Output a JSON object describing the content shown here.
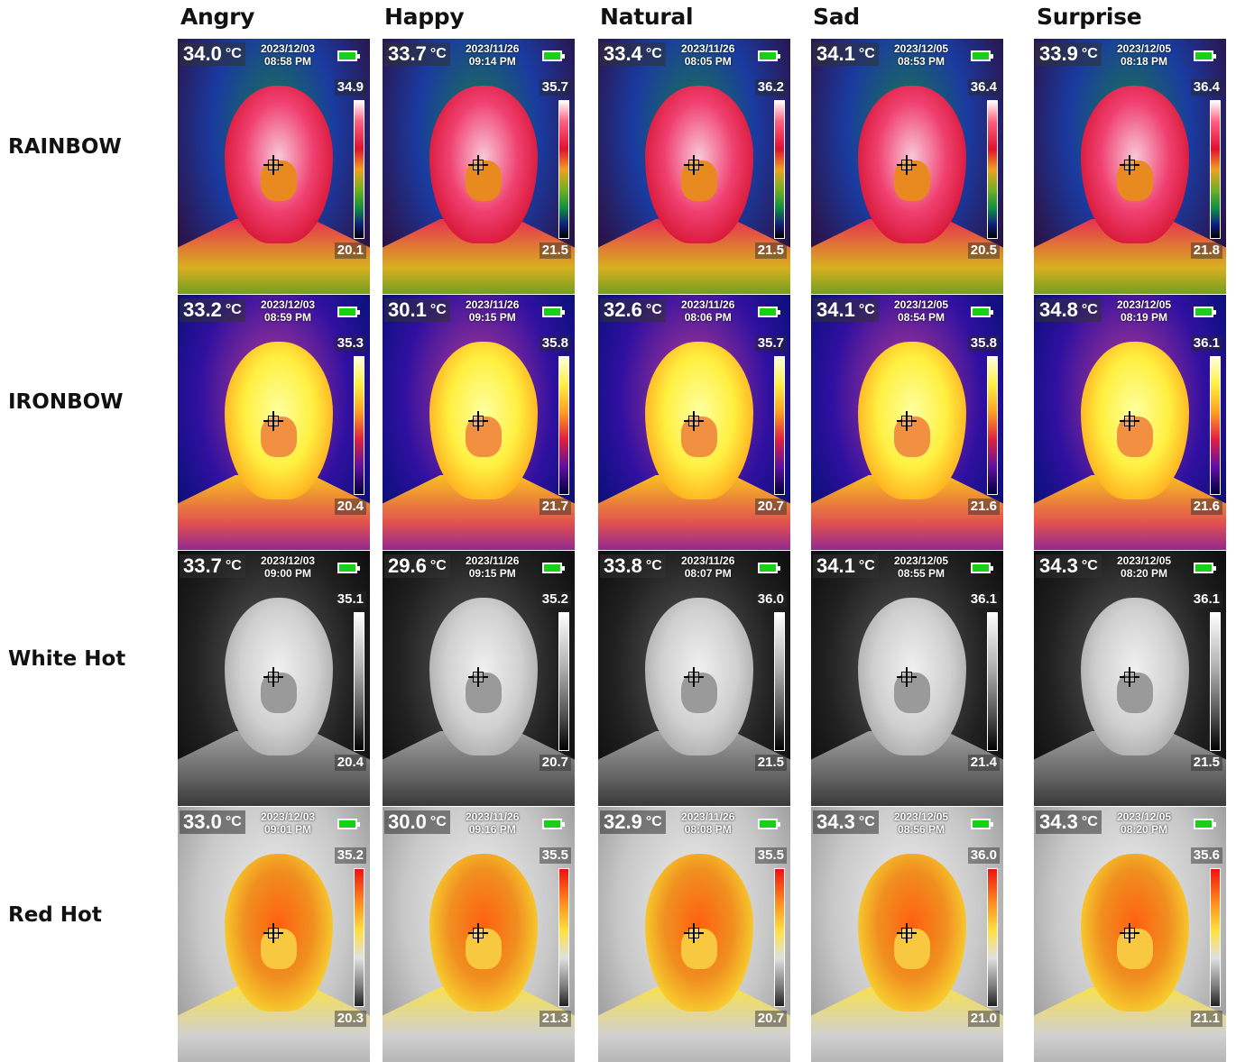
{
  "columns": [
    "Angry",
    "Happy",
    "Natural",
    "Sad",
    "Surprise"
  ],
  "rows": [
    {
      "label": "RAINBOW",
      "palette": "rainbow",
      "cells": [
        {
          "temp": "34.0",
          "unit": "°C",
          "date": "2023/12/03",
          "time": "08:58 PM",
          "max": "34.9",
          "min": "20.1"
        },
        {
          "temp": "33.7",
          "unit": "°C",
          "date": "2023/11/26",
          "time": "09:14 PM",
          "max": "35.7",
          "min": "21.5"
        },
        {
          "temp": "33.4",
          "unit": "°C",
          "date": "2023/11/26",
          "time": "08:05 PM",
          "max": "36.2",
          "min": "21.5"
        },
        {
          "temp": "34.1",
          "unit": "°C",
          "date": "2023/12/05",
          "time": "08:53 PM",
          "max": "36.4",
          "min": "20.5"
        },
        {
          "temp": "33.9",
          "unit": "°C",
          "date": "2023/12/05",
          "time": "08:18 PM",
          "max": "36.4",
          "min": "21.8"
        }
      ]
    },
    {
      "label": "IRONBOW",
      "palette": "ironbow",
      "cells": [
        {
          "temp": "33.2",
          "unit": "°C",
          "date": "2023/12/03",
          "time": "08:59 PM",
          "max": "35.3",
          "min": "20.4"
        },
        {
          "temp": "30.1",
          "unit": "°C",
          "date": "2023/11/26",
          "time": "09:15 PM",
          "max": "35.8",
          "min": "21.7"
        },
        {
          "temp": "32.6",
          "unit": "°C",
          "date": "2023/11/26",
          "time": "08:06 PM",
          "max": "35.7",
          "min": "20.7"
        },
        {
          "temp": "34.1",
          "unit": "°C",
          "date": "2023/12/05",
          "time": "08:54 PM",
          "max": "35.8",
          "min": "21.6"
        },
        {
          "temp": "34.8",
          "unit": "°C",
          "date": "2023/12/05",
          "time": "08:19 PM",
          "max": "36.1",
          "min": "21.6"
        }
      ]
    },
    {
      "label": "White Hot",
      "palette": "white",
      "cells": [
        {
          "temp": "33.7",
          "unit": "°C",
          "date": "2023/12/03",
          "time": "09:00 PM",
          "max": "35.1",
          "min": "20.4"
        },
        {
          "temp": "29.6",
          "unit": "°C",
          "date": "2023/11/26",
          "time": "09:15 PM",
          "max": "35.2",
          "min": "20.7"
        },
        {
          "temp": "33.8",
          "unit": "°C",
          "date": "2023/11/26",
          "time": "08:07 PM",
          "max": "36.0",
          "min": "21.5"
        },
        {
          "temp": "34.1",
          "unit": "°C",
          "date": "2023/12/05",
          "time": "08:55 PM",
          "max": "36.1",
          "min": "21.4"
        },
        {
          "temp": "34.3",
          "unit": "°C",
          "date": "2023/12/05",
          "time": "08:20 PM",
          "max": "36.1",
          "min": "21.5"
        }
      ]
    },
    {
      "label": "Red Hot",
      "palette": "redhot",
      "cells": [
        {
          "temp": "33.0",
          "unit": "°C",
          "date": "2023/12/03",
          "time": "09:01 PM",
          "max": "35.2",
          "min": "20.3"
        },
        {
          "temp": "30.0",
          "unit": "°C",
          "date": "2023/11/26",
          "time": "09:16 PM",
          "max": "35.5",
          "min": "21.3"
        },
        {
          "temp": "32.9",
          "unit": "°C",
          "date": "2023/11/26",
          "time": "08:08 PM",
          "max": "35.5",
          "min": "20.7"
        },
        {
          "temp": "34.3",
          "unit": "°C",
          "date": "2023/12/05",
          "time": "08:56 PM",
          "max": "36.0",
          "min": "21.0"
        },
        {
          "temp": "34.3",
          "unit": "°C",
          "date": "2023/12/05",
          "time": "08:20 PM",
          "max": "35.6",
          "min": "21.1"
        }
      ]
    }
  ]
}
